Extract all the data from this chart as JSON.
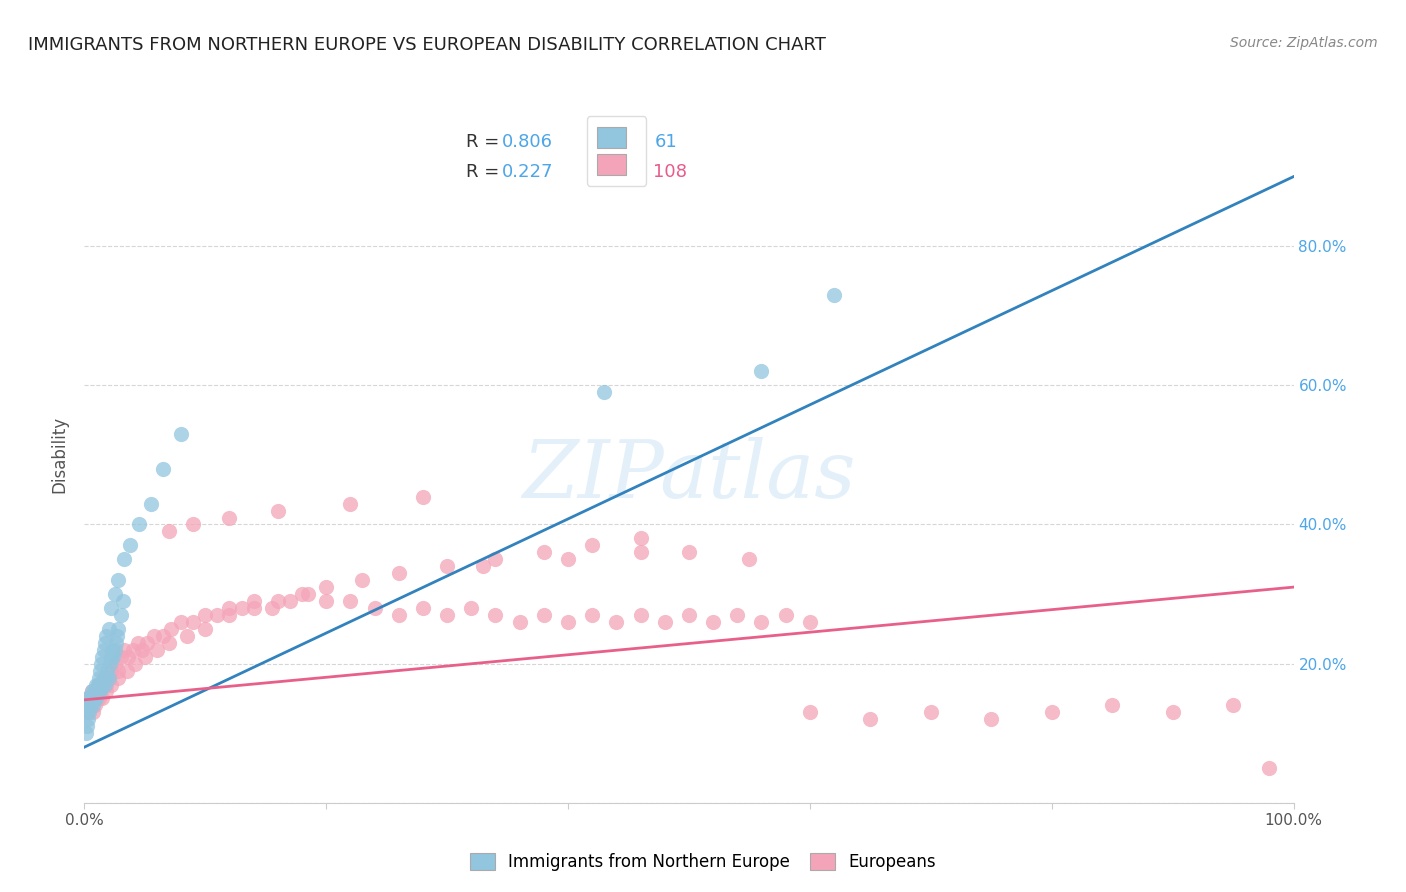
{
  "title": "IMMIGRANTS FROM NORTHERN EUROPE VS EUROPEAN DISABILITY CORRELATION CHART",
  "source": "Source: ZipAtlas.com",
  "ylabel": "Disability",
  "watermark": "ZIPatlas",
  "xlim": [
    0,
    1
  ],
  "ylim": [
    0,
    1
  ],
  "color_blue": "#92c5de",
  "color_pink": "#f4a4b8",
  "color_blue_line": "#3182bd",
  "color_pink_line": "#e8608a",
  "background": "#ffffff",
  "grid_color": "#cccccc",
  "blue_line_x0": 0.0,
  "blue_line_x1": 1.0,
  "blue_line_y0": 0.08,
  "blue_line_y1": 0.9,
  "pink_line_x0": 0.0,
  "pink_line_x1": 1.0,
  "pink_line_y0": 0.148,
  "pink_line_y1": 0.31,
  "blue_scatter_x": [
    0.001,
    0.002,
    0.003,
    0.004,
    0.005,
    0.006,
    0.007,
    0.008,
    0.009,
    0.01,
    0.011,
    0.012,
    0.013,
    0.014,
    0.015,
    0.016,
    0.017,
    0.018,
    0.019,
    0.02,
    0.021,
    0.022,
    0.023,
    0.024,
    0.025,
    0.026,
    0.027,
    0.028,
    0.03,
    0.032,
    0.001,
    0.002,
    0.003,
    0.004,
    0.005,
    0.006,
    0.007,
    0.008,
    0.009,
    0.01,
    0.011,
    0.012,
    0.013,
    0.014,
    0.015,
    0.016,
    0.017,
    0.018,
    0.02,
    0.022,
    0.025,
    0.028,
    0.033,
    0.038,
    0.045,
    0.055,
    0.065,
    0.08,
    0.43,
    0.56,
    0.62
  ],
  "blue_scatter_y": [
    0.13,
    0.14,
    0.15,
    0.14,
    0.15,
    0.16,
    0.14,
    0.15,
    0.16,
    0.15,
    0.16,
    0.17,
    0.16,
    0.17,
    0.17,
    0.18,
    0.17,
    0.18,
    0.19,
    0.18,
    0.2,
    0.21,
    0.22,
    0.21,
    0.22,
    0.23,
    0.24,
    0.25,
    0.27,
    0.29,
    0.1,
    0.11,
    0.12,
    0.13,
    0.14,
    0.15,
    0.15,
    0.16,
    0.15,
    0.17,
    0.17,
    0.18,
    0.19,
    0.2,
    0.21,
    0.22,
    0.23,
    0.24,
    0.25,
    0.28,
    0.3,
    0.32,
    0.35,
    0.37,
    0.4,
    0.43,
    0.48,
    0.53,
    0.59,
    0.62,
    0.73
  ],
  "pink_scatter_x": [
    0.002,
    0.003,
    0.004,
    0.005,
    0.006,
    0.007,
    0.008,
    0.009,
    0.01,
    0.011,
    0.012,
    0.013,
    0.015,
    0.016,
    0.018,
    0.02,
    0.022,
    0.025,
    0.028,
    0.03,
    0.033,
    0.036,
    0.04,
    0.044,
    0.048,
    0.052,
    0.058,
    0.065,
    0.072,
    0.08,
    0.09,
    0.1,
    0.11,
    0.12,
    0.13,
    0.14,
    0.155,
    0.17,
    0.185,
    0.2,
    0.22,
    0.24,
    0.26,
    0.28,
    0.3,
    0.32,
    0.34,
    0.36,
    0.38,
    0.4,
    0.42,
    0.44,
    0.46,
    0.48,
    0.5,
    0.52,
    0.54,
    0.56,
    0.58,
    0.6,
    0.003,
    0.005,
    0.007,
    0.009,
    0.012,
    0.015,
    0.018,
    0.022,
    0.028,
    0.035,
    0.042,
    0.05,
    0.06,
    0.07,
    0.085,
    0.1,
    0.12,
    0.14,
    0.16,
    0.18,
    0.2,
    0.23,
    0.26,
    0.3,
    0.34,
    0.38,
    0.42,
    0.46,
    0.5,
    0.55,
    0.6,
    0.65,
    0.7,
    0.75,
    0.8,
    0.85,
    0.9,
    0.95,
    0.98,
    0.07,
    0.09,
    0.12,
    0.16,
    0.22,
    0.28,
    0.33,
    0.4,
    0.46
  ],
  "pink_scatter_y": [
    0.15,
    0.14,
    0.15,
    0.15,
    0.16,
    0.15,
    0.15,
    0.16,
    0.16,
    0.17,
    0.17,
    0.16,
    0.17,
    0.18,
    0.17,
    0.18,
    0.19,
    0.2,
    0.19,
    0.21,
    0.22,
    0.21,
    0.22,
    0.23,
    0.22,
    0.23,
    0.24,
    0.24,
    0.25,
    0.26,
    0.26,
    0.27,
    0.27,
    0.28,
    0.28,
    0.29,
    0.28,
    0.29,
    0.3,
    0.29,
    0.29,
    0.28,
    0.27,
    0.28,
    0.27,
    0.28,
    0.27,
    0.26,
    0.27,
    0.26,
    0.27,
    0.26,
    0.27,
    0.26,
    0.27,
    0.26,
    0.27,
    0.26,
    0.27,
    0.26,
    0.13,
    0.14,
    0.13,
    0.14,
    0.15,
    0.15,
    0.16,
    0.17,
    0.18,
    0.19,
    0.2,
    0.21,
    0.22,
    0.23,
    0.24,
    0.25,
    0.27,
    0.28,
    0.29,
    0.3,
    0.31,
    0.32,
    0.33,
    0.34,
    0.35,
    0.36,
    0.37,
    0.38,
    0.36,
    0.35,
    0.13,
    0.12,
    0.13,
    0.12,
    0.13,
    0.14,
    0.13,
    0.14,
    0.05,
    0.39,
    0.4,
    0.41,
    0.42,
    0.43,
    0.44,
    0.34,
    0.35,
    0.36
  ]
}
